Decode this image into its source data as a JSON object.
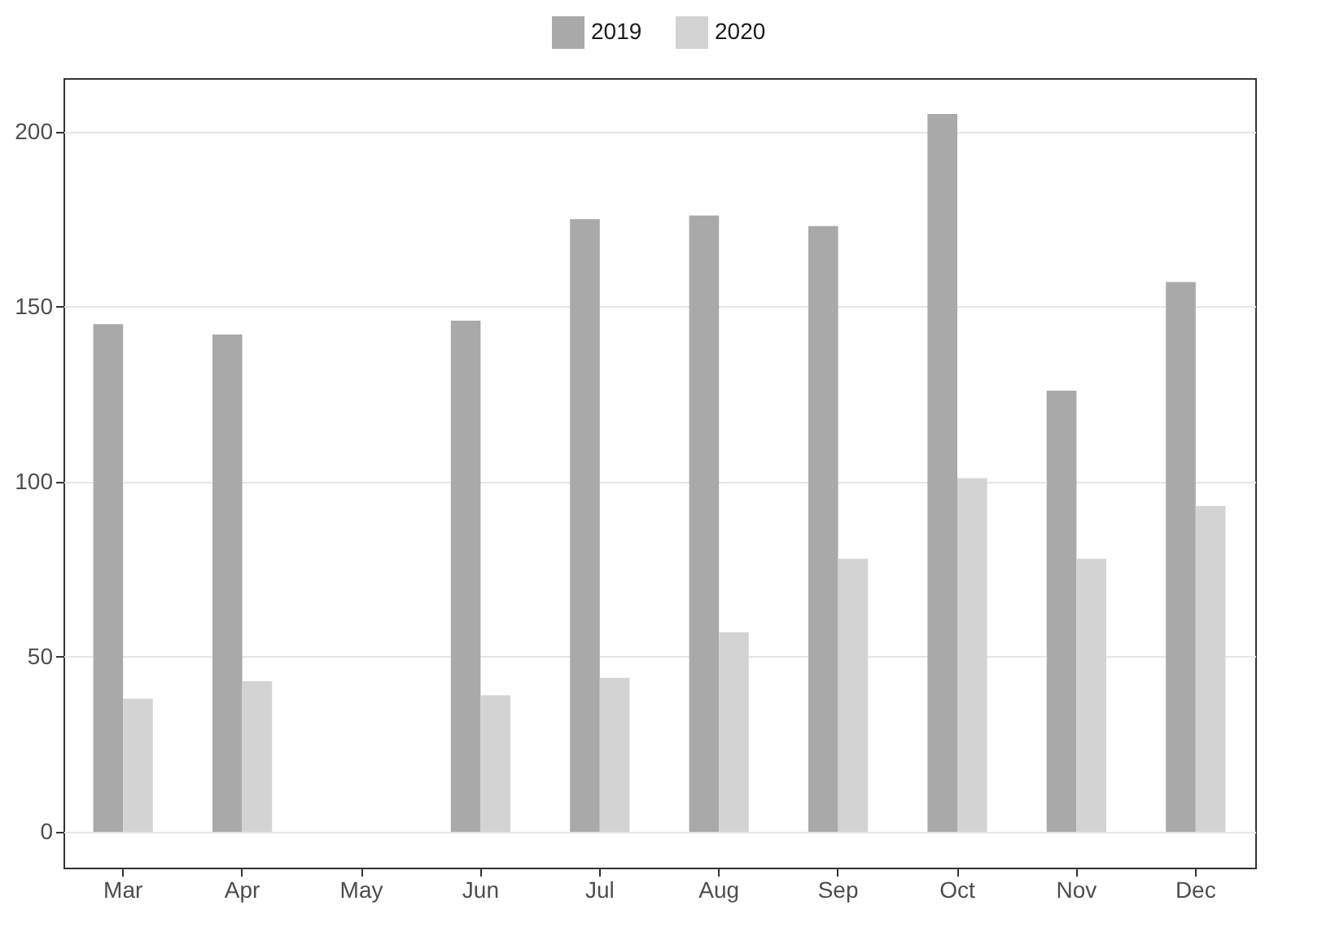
{
  "chart_data": {
    "type": "bar",
    "categories": [
      "Mar",
      "Apr",
      "May",
      "Jun",
      "Jul",
      "Aug",
      "Sep",
      "Oct",
      "Nov",
      "Dec"
    ],
    "series": [
      {
        "name": "2019",
        "color": "#a9a9a9",
        "values": [
          145,
          142,
          null,
          146,
          175,
          176,
          173,
          205,
          126,
          157
        ]
      },
      {
        "name": "2020",
        "color": "#d3d3d3",
        "values": [
          38,
          43,
          null,
          39,
          44,
          57,
          78,
          101,
          78,
          93
        ]
      }
    ],
    "ylim": [
      -10.25,
      215.25
    ],
    "yticks": [
      0,
      50,
      100,
      150,
      200
    ],
    "grid": "y",
    "legend": "top"
  }
}
